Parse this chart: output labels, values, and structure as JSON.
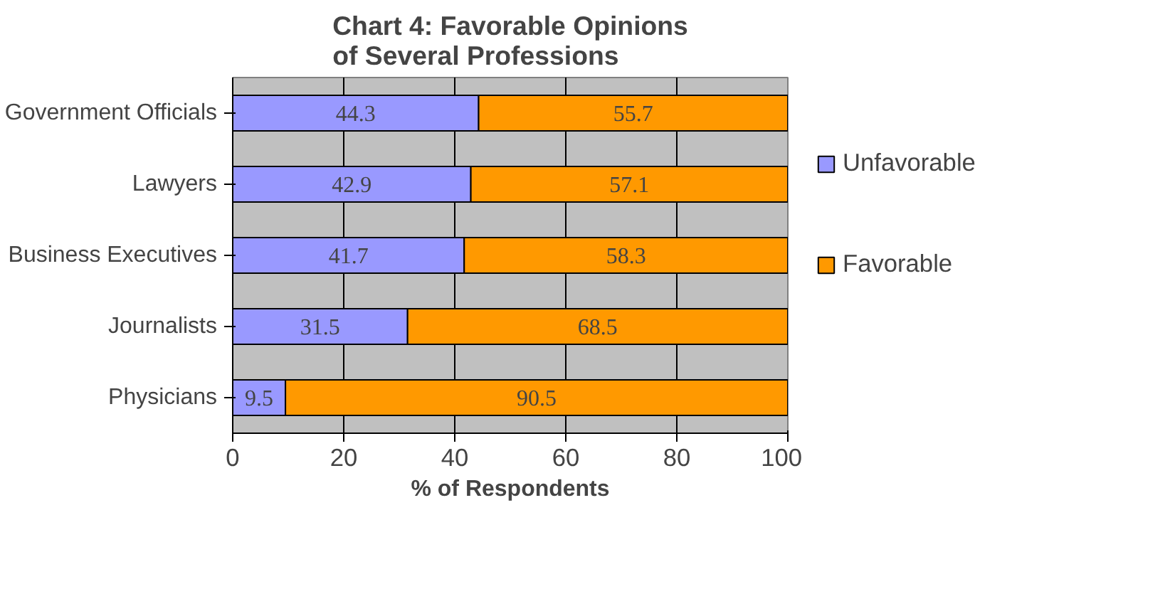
{
  "chart_data": {
    "type": "bar",
    "orientation": "horizontal",
    "stacked": true,
    "title": "Chart 4: Favorable Opinions of Several Professions",
    "xlabel": "% of Respondents",
    "categories": [
      "Government Officials",
      "Lawyers",
      "Business Executives",
      "Journalists",
      "Physicians"
    ],
    "series": [
      {
        "name": "Unfavorable",
        "color": "#9999ff",
        "values": [
          44.3,
          42.9,
          41.7,
          31.5,
          9.5
        ]
      },
      {
        "name": "Favorable",
        "color": "#ff9900",
        "values": [
          55.7,
          57.1,
          58.3,
          68.5,
          90.5
        ]
      }
    ],
    "xlim": [
      0,
      100
    ],
    "xticks": [
      0,
      20,
      40,
      60,
      80,
      100
    ],
    "grid": "x",
    "legend": "right",
    "data_labels": true
  }
}
